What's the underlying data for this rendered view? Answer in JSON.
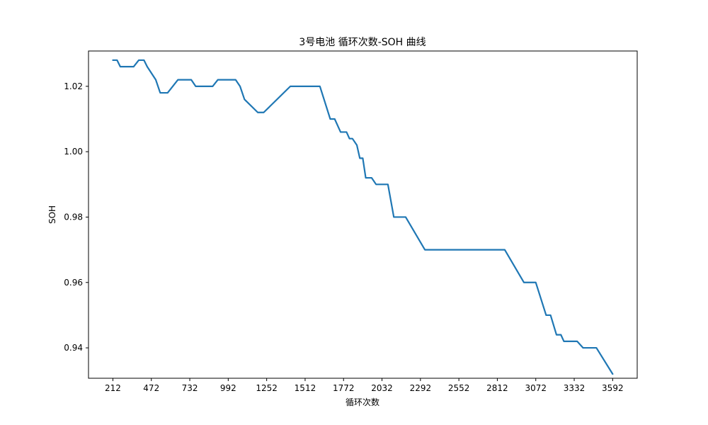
{
  "chart_data": {
    "type": "line",
    "title": "3号电池 循环次数-SOH 曲线",
    "xlabel": "循环次数",
    "ylabel": "SOH",
    "xlim": [
      47,
      3758
    ],
    "ylim": [
      0.9307,
      1.0308
    ],
    "x_ticks": [
      212,
      472,
      732,
      992,
      1252,
      1512,
      1772,
      2032,
      2292,
      2552,
      2812,
      3072,
      3332,
      3592
    ],
    "y_ticks": [
      0.94,
      0.96,
      0.98,
      1.0,
      1.02
    ],
    "y_tick_labels": [
      "0.94",
      "0.96",
      "0.98",
      "1.00",
      "1.02"
    ],
    "grid": false,
    "series": [
      {
        "color": "#1f77b4",
        "x": [
          212,
          240,
          262,
          332,
          352,
          387,
          402,
          422,
          444,
          502,
          532,
          582,
          652,
          672,
          742,
          772,
          812,
          842,
          887,
          922,
          1002,
          1042,
          1072,
          1102,
          1192,
          1232,
          1412,
          1442,
          1592,
          1612,
          1682,
          1712,
          1752,
          1792,
          1812,
          1832,
          1862,
          1882,
          1902,
          1922,
          1962,
          1992,
          2022,
          2052,
          2072,
          2112,
          2192,
          2322,
          2452,
          2862,
          2992,
          3072,
          3142,
          3172,
          3212,
          3242,
          3262,
          3292,
          3352,
          3392,
          3482,
          3592
        ],
        "y": [
          1.028,
          1.028,
          1.026,
          1.026,
          1.026,
          1.028,
          1.028,
          1.028,
          1.026,
          1.022,
          1.018,
          1.018,
          1.022,
          1.022,
          1.022,
          1.02,
          1.02,
          1.02,
          1.02,
          1.022,
          1.022,
          1.022,
          1.02,
          1.016,
          1.012,
          1.012,
          1.02,
          1.02,
          1.02,
          1.02,
          1.01,
          1.01,
          1.006,
          1.006,
          1.004,
          1.004,
          1.002,
          0.998,
          0.998,
          0.992,
          0.992,
          0.99,
          0.99,
          0.99,
          0.99,
          0.98,
          0.98,
          0.97,
          0.97,
          0.97,
          0.96,
          0.96,
          0.95,
          0.95,
          0.944,
          0.944,
          0.942,
          0.942,
          0.942,
          0.94,
          0.94,
          0.932
        ]
      }
    ]
  }
}
